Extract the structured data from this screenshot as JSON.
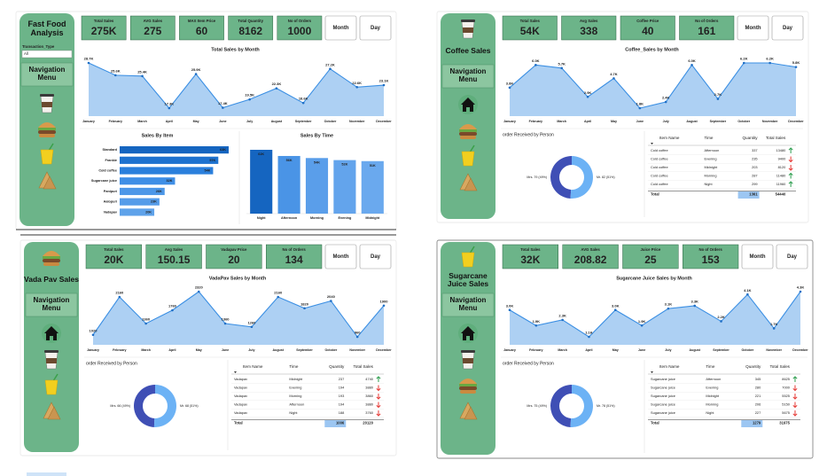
{
  "panels": [
    {
      "title": "Fast Food Analysis",
      "filter_label": "Transaction_Type",
      "filter_value": "All",
      "nav": "Navigation Menu",
      "kpis": [
        {
          "label": "Total Sales",
          "value": "275K"
        },
        {
          "label": "AVG Sales",
          "value": "275"
        },
        {
          "label": "MAX Item Price",
          "value": "60"
        },
        {
          "label": "Total Quantity",
          "value": "8162"
        },
        {
          "label": "No of Orders",
          "value": "1000"
        }
      ],
      "buttons": [
        "Month",
        "Day"
      ]
    },
    {
      "title": "Coffee Sales",
      "nav": "Navigation Menu",
      "kpis": [
        {
          "label": "Total Sales",
          "value": "54K"
        },
        {
          "label": "Avg Sales",
          "value": "338"
        },
        {
          "label": "Coffee Price",
          "value": "40"
        },
        {
          "label": "No of Orders",
          "value": "161"
        }
      ],
      "buttons": [
        "Month",
        "Day"
      ],
      "table": {
        "columns": [
          "Item Name",
          "Time",
          "Quantity",
          "Total Sales"
        ],
        "rows": [
          [
            "Cold coffee",
            "Afternoon",
            337,
            13480
          ],
          [
            "Cold coffee",
            "Evening",
            235,
            9400
          ],
          [
            "Cold coffee",
            "Midnight",
            203,
            8120
          ],
          [
            "Cold coffee",
            "Morning",
            287,
            11480
          ],
          [
            "Cold coffee",
            "Night",
            299,
            11960
          ]
        ],
        "trend": [
          "up",
          "down",
          "down",
          "up",
          "up"
        ],
        "total": {
          "label": "Total",
          "quantity": 1361,
          "sales": 54440
        }
      }
    },
    {
      "title": "Vada Pav Sales",
      "nav": "Navigation Menu",
      "kpis": [
        {
          "label": "Total Sales",
          "value": "20K"
        },
        {
          "label": "Avg Sales",
          "value": "150.15"
        },
        {
          "label": "Vadapav Price",
          "value": "20"
        },
        {
          "label": "No of Orders",
          "value": "134"
        }
      ],
      "buttons": [
        "Month",
        "Day"
      ],
      "table": {
        "columns": [
          "Item Name",
          "Time",
          "Quantity",
          "Total Sales"
        ],
        "rows": [
          [
            "Vadapav",
            "Midnight",
            237,
            4740
          ],
          [
            "Vadapav",
            "Evening",
            194,
            3880
          ],
          [
            "Vadapav",
            "Morning",
            193,
            3860
          ],
          [
            "Vadapav",
            "Afternoon",
            194,
            3880
          ],
          [
            "Vadapav",
            "Night",
            188,
            3760
          ]
        ],
        "trend": [
          "up",
          "down",
          "down",
          "down",
          "down"
        ],
        "total": {
          "label": "Total",
          "quantity": 1006,
          "sales": 20120
        }
      }
    },
    {
      "title": "Sugarcane Juice Sales",
      "nav": "Navigation Menu",
      "kpis": [
        {
          "label": "Total Sales",
          "value": "32K"
        },
        {
          "label": "AVG Sales",
          "value": "208.82"
        },
        {
          "label": "Juice Price",
          "value": "25"
        },
        {
          "label": "No of Orders",
          "value": "153"
        }
      ],
      "buttons": [
        "Month",
        "Day"
      ],
      "table": {
        "columns": [
          "Item Name",
          "Time",
          "Quantity",
          "Total Sales"
        ],
        "rows": [
          [
            "Sugarcane juice",
            "Afternoon",
            345,
            8625
          ],
          [
            "Sugarcane juice",
            "Evening",
            280,
            7000
          ],
          [
            "Sugarcane juice",
            "Midnight",
            221,
            5525
          ],
          [
            "Sugarcane juice",
            "Morning",
            206,
            5150
          ],
          [
            "Sugarcane juice",
            "Night",
            227,
            5675
          ]
        ],
        "trend": [
          "up",
          "down",
          "down",
          "down",
          "down"
        ],
        "total": {
          "label": "Total",
          "quantity": 1279,
          "sales": 31975
        }
      }
    }
  ],
  "chart_data": [
    {
      "type": "line",
      "title": "Total Sales by Month",
      "color": "#3b8fe3",
      "categories": [
        "January",
        "February",
        "March",
        "April",
        "May",
        "June",
        "July",
        "August",
        "September",
        "October",
        "November",
        "December"
      ],
      "values": [
        28700,
        25600,
        25400,
        17300,
        25900,
        17400,
        19500,
        22300,
        18600,
        27200,
        22600,
        23100
      ],
      "value_labels": [
        "28.7K",
        "25.6K",
        "25.4K",
        "17.3K",
        "25.9K",
        "17.4K",
        "19.5K",
        "22.3K",
        "18.6K",
        "27.2K",
        "22.6K",
        "23.1K"
      ]
    },
    {
      "type": "bar",
      "orientation": "horizontal",
      "title": "Sales By Item",
      "categories": [
        "Standard",
        "Frankie",
        "Cold coffee",
        "Sugarcane juice",
        "Panipuri",
        "Aalopuri",
        "Vadapav"
      ],
      "values": [
        63000,
        57000,
        54000,
        32000,
        26000,
        23000,
        20000
      ],
      "value_labels": [
        "63K",
        "57K",
        "54K",
        "32K",
        "26K",
        "23K",
        "20K"
      ],
      "colors": [
        "#1565c0",
        "#1e72cf",
        "#2a7fdc",
        "#3f8fe6",
        "#4c97e8",
        "#559ce9",
        "#5ea2ea"
      ]
    },
    {
      "type": "bar",
      "orientation": "vertical",
      "title": "Sales By Time",
      "categories": [
        "Night",
        "Afternoon",
        "Morning",
        "Evening",
        "Midnight"
      ],
      "values": [
        62000,
        56000,
        54000,
        52000,
        51000
      ],
      "value_labels": [
        "62K",
        "56K",
        "54K",
        "52K",
        "51K"
      ],
      "colors": [
        "#1565c0",
        "#4a94e6",
        "#5a9eea",
        "#63a4ec",
        "#6aa9ee"
      ]
    },
    {
      "type": "line",
      "title": "Coffee_Sales by Month",
      "color": "#3b8fe3",
      "categories": [
        "January",
        "February",
        "March",
        "April",
        "May",
        "June",
        "July",
        "August",
        "September",
        "October",
        "November",
        "December"
      ],
      "values": [
        3800,
        6000,
        5700,
        2900,
        4700,
        1800,
        2400,
        6000,
        2700,
        6200,
        6200,
        5800
      ],
      "value_labels": [
        "3.8K",
        "6.0K",
        "5.7K",
        "2.9K",
        "4.7K",
        "1.8K",
        "2.4K",
        "6.0K",
        "2.7K",
        "6.2K",
        "6.2K",
        "5.8K"
      ]
    },
    {
      "type": "pie",
      "hole": true,
      "title": "order Received by Person",
      "values": [
        79,
        82
      ],
      "value_labels": [
        "Mrs. 79 (49%)",
        "Mr. 82 (51%)"
      ],
      "colors": [
        "#3f4fb5",
        "#6cb2f5"
      ]
    },
    {
      "type": "line",
      "title": "VadaPav Sales by Month",
      "color": "#3b8fe3",
      "categories": [
        "January",
        "February",
        "March",
        "April",
        "May",
        "June",
        "July",
        "August",
        "September",
        "October",
        "November",
        "December"
      ],
      "values": [
        1020,
        2160,
        1360,
        1760,
        2320,
        1360,
        1260,
        2160,
        1820,
        2040,
        960,
        1900
      ]
    },
    {
      "type": "pie",
      "hole": true,
      "title": "order Received by Person",
      "values": [
        66,
        68
      ],
      "value_labels": [
        "Mrs. 66 (49%)",
        "Mr. 68 (51%)"
      ],
      "colors": [
        "#3f4fb5",
        "#6cb2f5"
      ]
    },
    {
      "type": "line",
      "title": "Sugarcane Juice Sales by Month",
      "color": "#3b8fe3",
      "categories": [
        "January",
        "February",
        "March",
        "April",
        "May",
        "June",
        "July",
        "August",
        "September",
        "October",
        "November",
        "December"
      ],
      "values": [
        3000,
        1900,
        2300,
        1100,
        3000,
        1900,
        3100,
        3300,
        2200,
        4100,
        1700,
        4300
      ],
      "value_labels": [
        "3.0K",
        "1.9K",
        "2.3K",
        "1.1K",
        "3.0K",
        "1.9K",
        "3.1K",
        "3.3K",
        "2.2K",
        "4.1K",
        "1.7K",
        "4.3K"
      ]
    },
    {
      "type": "pie",
      "hole": true,
      "title": "order Received by Person",
      "values": [
        75,
        78
      ],
      "value_labels": [
        "Mrs. 75 (49%)",
        "Mr. 78 (51%)"
      ],
      "colors": [
        "#3f4fb5",
        "#6cb2f5"
      ]
    }
  ]
}
